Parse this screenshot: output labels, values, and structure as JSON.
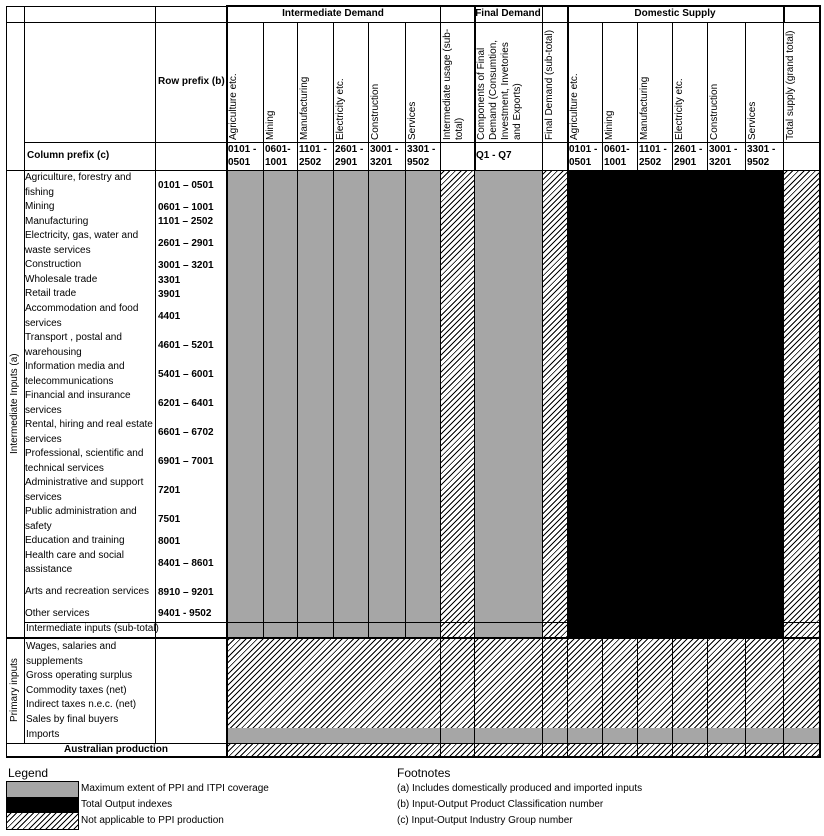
{
  "colors": {
    "gray": "#a6a6a6",
    "black": "#000000"
  },
  "header": {
    "groups": [
      "Intermediate Demand",
      "Final Demand",
      "Domestic Supply"
    ],
    "row_prefix_label": "Row prefix (b)",
    "column_prefix_label": "Column prefix (c)",
    "columns": [
      "Agriculture etc.",
      "Mining",
      "Manufacturing",
      "Electricity etc.",
      "Construction",
      "Services",
      "Intermediate usage (sub-total)",
      "Components of Final Demand (Consumtion, Investment, Invetories and Exports)",
      "Final Demand (sub-total)",
      "Agriculture etc.",
      "Mining",
      "Manufacturing",
      "Electricity etc.",
      "Construction",
      "Services",
      "Total supply (grand total)"
    ],
    "column_prefixes": [
      "0101 - 0501",
      "0601- 1001",
      "1101 - 2502",
      "2601 - 2901",
      "3001 - 3201",
      "3301 - 9502",
      "",
      "Q1 - Q7",
      "",
      "0101 - 0501",
      "0601- 1001",
      "1101 - 2502",
      "2601 - 2901",
      "3001 - 3201",
      "3301 - 9502",
      ""
    ]
  },
  "intermediate": {
    "section_label": "Intermediate Inputs (a)",
    "rows": [
      {
        "label": "Agriculture, forestry and fishing",
        "prefix": "0101 – 0501"
      },
      {
        "label": "Mining",
        "prefix": "0601 – 1001"
      },
      {
        "label": "Manufacturing",
        "prefix": "1101 – 2502"
      },
      {
        "label": "Electricity, gas, water and waste services",
        "prefix": "2601 – 2901"
      },
      {
        "label": "Construction",
        "prefix": "3001 – 3201"
      },
      {
        "label": "Wholesale trade",
        "prefix": "3301"
      },
      {
        "label": "Retail trade",
        "prefix": "3901"
      },
      {
        "label": "Accommodation and food services",
        "prefix": "4401"
      },
      {
        "label": "Transport , postal and warehousing",
        "prefix": "4601 – 5201"
      },
      {
        "label": "Information media and telecommunications",
        "prefix": "5401 – 6001"
      },
      {
        "label": "Financial and insurance services",
        "prefix": "6201 – 6401"
      },
      {
        "label": "Rental, hiring and real estate services",
        "prefix": "6601 – 6702"
      },
      {
        "label": "Professional, scientific and technical services",
        "prefix": "6901 – 7001"
      },
      {
        "label": "Administrative and support services",
        "prefix": "7201"
      },
      {
        "label": "Public administration and safety",
        "prefix": "7501"
      },
      {
        "label": "Education and training",
        "prefix": "8001"
      },
      {
        "label": "Health care and social assistance",
        "prefix": "8401 – 8601"
      },
      {
        "label": "Arts and recreation services",
        "prefix": "8910 – 9201"
      },
      {
        "label": "Other services",
        "prefix": "9401 - 9502"
      }
    ],
    "subtotal_label": "Intermediate inputs (sub-total)"
  },
  "primary": {
    "section_label": "Primary inputs",
    "rows": [
      "Wages, salaries and supplements",
      "Gross operating surplus",
      "Commodity taxes (net)",
      "Indirect taxes n.e.c. (net)",
      "Sales by final buyers",
      "Imports"
    ]
  },
  "australian_production_label": "Australian production",
  "legend": {
    "title": "Legend",
    "items": [
      {
        "swatch": "gray",
        "label": "Maximum extent of PPI and ITPI coverage"
      },
      {
        "swatch": "black",
        "label": "Total Output indexes"
      },
      {
        "swatch": "hatch",
        "label": "Not applicable to PPI production"
      }
    ]
  },
  "footnotes": {
    "title": "Footnotes",
    "items": [
      "(a) Includes domestically produced and imported inputs",
      "(b) Input-Output Product Classification number",
      "(c) Input-Output Industry Group number"
    ]
  }
}
